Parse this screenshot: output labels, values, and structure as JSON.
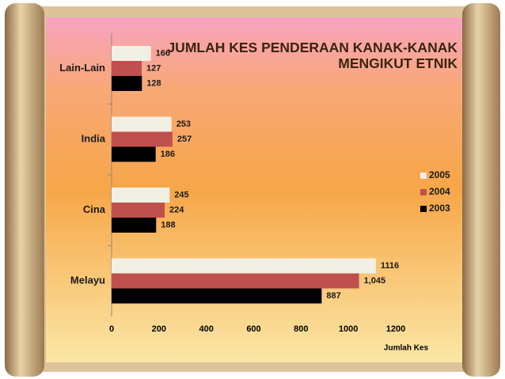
{
  "chart_data": {
    "type": "bar",
    "orientation": "horizontal",
    "title": "JUMLAH KES PENDERAAN KANAK-KANAK MENGIKUT ETNIK",
    "x_label": "Jumlah Kes",
    "categories": [
      "Lain-Lain",
      "India",
      "Cina",
      "Melayu"
    ],
    "series": [
      {
        "name": "2005",
        "color": "#f2efe4",
        "values": [
          166,
          253,
          245,
          1116
        ]
      },
      {
        "name": "2004",
        "color": "#c0504d",
        "values": [
          127,
          257,
          224,
          1045
        ],
        "value_labels": [
          "127",
          "257",
          "224",
          "1,045"
        ]
      },
      {
        "name": "2003",
        "color": "#000000",
        "values": [
          128,
          186,
          188,
          887
        ]
      }
    ],
    "xlim": [
      0,
      1200
    ],
    "xticks": [
      0,
      200,
      400,
      600,
      800,
      1000,
      1200
    ],
    "legend": "right"
  }
}
